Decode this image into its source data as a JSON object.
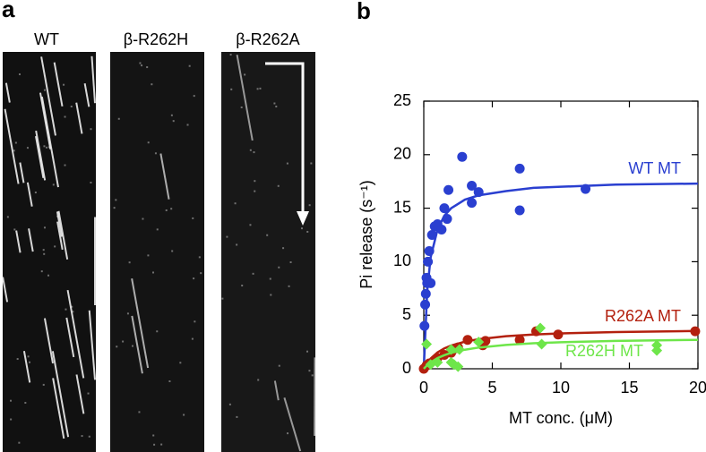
{
  "panel_labels": [
    "a",
    "b"
  ],
  "kymographs": {
    "labels": [
      "WT",
      "β-R262H",
      "β-R262A"
    ]
  },
  "chart_data": {
    "type": "scatter",
    "xlabel": "MT conc. (μM)",
    "ylabel": "Pi release (s⁻¹)",
    "xlim": [
      0,
      20
    ],
    "xticks": [
      0,
      5,
      10,
      15,
      20
    ],
    "ylim": [
      0,
      25
    ],
    "yticks": [
      0,
      5,
      10,
      15,
      20,
      25
    ],
    "fit_x": [
      0,
      0.25,
      0.5,
      1,
      1.5,
      2,
      3,
      4,
      6,
      8,
      10,
      14,
      20
    ],
    "series": [
      {
        "name": "WT MT",
        "color": "#2a3fd0",
        "marker": "circle",
        "x": [
          0.05,
          0.1,
          0.15,
          0.2,
          0.25,
          0.3,
          0.4,
          0.5,
          0.6,
          0.8,
          1,
          1.3,
          1.5,
          1.7,
          1.8,
          2.8,
          3.5,
          3.5,
          4,
          7,
          7,
          11.8
        ],
        "values": [
          4,
          6,
          7,
          8.5,
          8,
          10,
          11,
          8,
          12.5,
          13.3,
          13.5,
          13,
          15,
          14,
          16.7,
          19.8,
          17.1,
          15.5,
          16.5,
          18.7,
          14.8,
          16.8
        ],
        "fit_values": [
          0,
          7.3,
          10.4,
          13.0,
          14.3,
          15.0,
          15.8,
          16.2,
          16.6,
          16.9,
          17.0,
          17.2,
          17.3
        ]
      },
      {
        "name": "R262A MT",
        "color": "#b3200e",
        "marker": "circle",
        "x": [
          0,
          0.2,
          0.4,
          0.8,
          1,
          1.5,
          2,
          2.3,
          2.5,
          3.2,
          4.3,
          4.5,
          7,
          8.2,
          9.8,
          19.8
        ],
        "values": [
          0,
          0.3,
          0.5,
          0.8,
          1,
          1.3,
          1.5,
          1.9,
          2,
          2.7,
          2.2,
          2.6,
          2.7,
          3.5,
          3.2,
          3.5
        ],
        "fit_values": [
          0,
          0.54,
          0.95,
          1.52,
          1.9,
          2.17,
          2.53,
          2.76,
          3.04,
          3.2,
          3.3,
          3.43,
          3.53
        ]
      },
      {
        "name": "R262H MT",
        "color": "#6ee64a",
        "marker": "diamond",
        "x": [
          0.2,
          0.5,
          1,
          2,
          2,
          2.2,
          2.5,
          2.6,
          4,
          8.5,
          8.6,
          17,
          17
        ],
        "values": [
          2.3,
          0.4,
          0.6,
          0.6,
          1.8,
          0.4,
          0.2,
          1.8,
          2.5,
          3.8,
          2.3,
          2.2,
          1.7
        ],
        "fit_values": [
          0,
          0.33,
          0.59,
          0.99,
          1.27,
          1.49,
          1.78,
          1.98,
          2.23,
          2.38,
          2.48,
          2.6,
          2.7
        ]
      }
    ]
  }
}
